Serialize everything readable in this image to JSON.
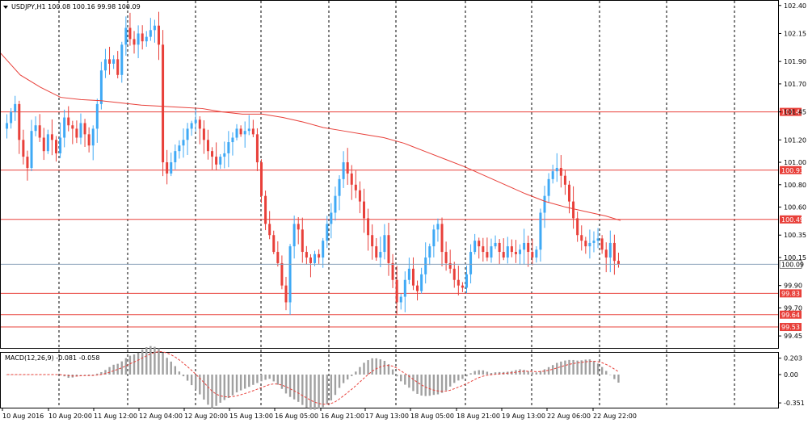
{
  "chart_data": {
    "type": "candlestick",
    "title": "USDJPY,H1  100.08 100.16 99.98 100.09",
    "symbol": "USDJPY,H1",
    "ohlc_header": "100.08 100.16 99.98 100.09",
    "current_price": "100.09",
    "ylim": [
      99.35,
      102.42
    ],
    "y_ticks": [
      "102.40",
      "102.15",
      "101.90",
      "101.70",
      "101.45",
      "101.20",
      "101.00",
      "100.80",
      "100.60",
      "100.35",
      "100.15",
      "99.90",
      "99.70",
      "99.45"
    ],
    "y_tick_values": [
      102.4,
      102.15,
      101.9,
      101.7,
      101.45,
      101.2,
      101.0,
      100.8,
      100.6,
      100.35,
      100.15,
      99.9,
      99.7,
      99.45
    ],
    "x_ticks": [
      "10 Aug 2016",
      "10 Aug 20:00",
      "11 Aug 12:00",
      "12 Aug 04:00",
      "12 Aug 20:00",
      "15 Aug 13:00",
      "16 Aug 05:00",
      "16 Aug 21:00",
      "17 Aug 13:00",
      "18 Aug 05:00",
      "18 Aug 21:00",
      "19 Aug 13:00",
      "22 Aug 06:00",
      "22 Aug 22:00"
    ],
    "levels": [
      {
        "label": "101.45",
        "value": 101.45
      },
      {
        "label": "100.93",
        "value": 100.93
      },
      {
        "label": "100.49",
        "value": 100.49
      },
      {
        "label": "99.83",
        "value": 99.83
      },
      {
        "label": "99.64",
        "value": 99.64
      },
      {
        "label": "99.53",
        "value": 99.53
      }
    ],
    "closes": [
      101.35,
      101.45,
      101.52,
      101.2,
      101.05,
      100.95,
      101.28,
      101.33,
      101.22,
      101.1,
      101.25,
      101.2,
      101.08,
      101.22,
      101.4,
      101.33,
      101.3,
      101.22,
      101.35,
      101.25,
      101.15,
      101.3,
      101.52,
      101.82,
      101.92,
      101.88,
      101.92,
      101.78,
      102.05,
      102.2,
      102.1,
      102.05,
      102.15,
      102.08,
      102.12,
      102.18,
      102.22,
      102.05,
      101.0,
      100.9,
      101.0,
      101.1,
      101.15,
      101.2,
      101.3,
      101.35,
      101.38,
      101.3,
      101.2,
      101.1,
      101.05,
      100.98,
      101.05,
      101.08,
      101.18,
      101.22,
      101.3,
      101.25,
      101.28,
      101.3,
      101.25,
      101.0,
      100.7,
      100.45,
      100.35,
      100.2,
      100.1,
      99.9,
      99.75,
      100.25,
      100.45,
      100.4,
      100.2,
      100.15,
      100.1,
      100.18,
      100.15,
      100.3,
      100.45,
      100.55,
      100.7,
      100.85,
      101.0,
      100.9,
      100.8,
      100.75,
      100.65,
      100.5,
      100.35,
      100.25,
      100.15,
      100.2,
      100.35,
      100.1,
      99.95,
      99.75,
      99.8,
      99.95,
      100.05,
      99.9,
      99.85,
      100.0,
      100.15,
      100.25,
      100.4,
      100.45,
      100.2,
      100.1,
      100.05,
      99.95,
      99.9,
      99.88,
      100.0,
      100.2,
      100.3,
      100.25,
      100.2,
      100.15,
      100.25,
      100.28,
      100.2,
      100.15,
      100.25,
      100.2,
      100.18,
      100.22,
      100.28,
      100.2,
      100.15,
      100.22,
      100.55,
      100.7,
      100.85,
      100.92,
      100.95,
      100.88,
      100.8,
      100.65,
      100.5,
      100.35,
      100.3,
      100.25,
      100.28,
      100.3,
      100.32,
      100.22,
      100.15,
      100.28,
      100.12,
      100.09
    ],
    "ma_label": "",
    "ma": [
      [
        0,
        101.98
      ],
      [
        25,
        101.78
      ],
      [
        50,
        101.67
      ],
      [
        75,
        101.58
      ],
      [
        100,
        101.56
      ],
      [
        125,
        101.55
      ],
      [
        150,
        101.53
      ],
      [
        175,
        101.51
      ],
      [
        200,
        101.5
      ],
      [
        225,
        101.49
      ],
      [
        250,
        101.48
      ],
      [
        275,
        101.45
      ],
      [
        300,
        101.43
      ],
      [
        325,
        101.43
      ],
      [
        350,
        101.4
      ],
      [
        375,
        101.36
      ],
      [
        400,
        101.31
      ],
      [
        425,
        101.28
      ],
      [
        450,
        101.25
      ],
      [
        475,
        101.22
      ],
      [
        500,
        101.17
      ],
      [
        525,
        101.1
      ],
      [
        550,
        101.03
      ],
      [
        575,
        100.96
      ],
      [
        600,
        100.88
      ],
      [
        625,
        100.8
      ],
      [
        650,
        100.72
      ],
      [
        675,
        100.65
      ],
      [
        700,
        100.6
      ],
      [
        725,
        100.56
      ],
      [
        750,
        100.52
      ],
      [
        768,
        100.48
      ]
    ],
    "macd_title": "MACD(12,26,9) -0.081 -0.058",
    "macd_ticks": [
      "0.203",
      "0.00",
      "-0.351"
    ],
    "macd_tick_values": [
      0.203,
      0.0,
      -0.351
    ],
    "macd_ylim": [
      -0.4,
      0.24
    ]
  }
}
